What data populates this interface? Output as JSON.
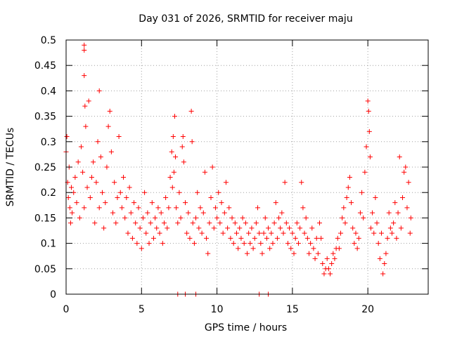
{
  "chart_data": {
    "type": "scatter",
    "title": "Day 031 of 2026, SRMTID for receiver maju",
    "xlabel": "GPS time / hours",
    "ylabel": "SRMTID / TECUs",
    "xlim": [
      0,
      24
    ],
    "ylim": [
      0,
      0.5
    ],
    "grid": true,
    "legend": "none",
    "marker": "+",
    "series_color": "#ff0000",
    "x_ticks": [
      0,
      5,
      10,
      15,
      20
    ],
    "x_tick_labels": [
      "0",
      "5",
      "10",
      "15",
      "20"
    ],
    "y_ticks": [
      0,
      0.05,
      0.1,
      0.15,
      0.2,
      0.25,
      0.3,
      0.35,
      0.4,
      0.45,
      0.5
    ],
    "y_tick_labels": [
      "0",
      "0.05",
      "0.1",
      "0.15",
      "0.2",
      "0.25",
      "0.3",
      "0.35",
      "0.4",
      "0.45",
      "0.5"
    ],
    "series": [
      {
        "name": "SRMTID",
        "points": [
          [
            0.0,
            0.28
          ],
          [
            0.05,
            0.31
          ],
          [
            0.1,
            0.22
          ],
          [
            0.15,
            0.19
          ],
          [
            0.2,
            0.25
          ],
          [
            0.25,
            0.17
          ],
          [
            0.3,
            0.14
          ],
          [
            0.35,
            0.21
          ],
          [
            0.4,
            0.16
          ],
          [
            0.5,
            0.2
          ],
          [
            0.6,
            0.23
          ],
          [
            0.7,
            0.18
          ],
          [
            0.8,
            0.26
          ],
          [
            0.9,
            0.15
          ],
          [
            1.0,
            0.29
          ],
          [
            1.1,
            0.24
          ],
          [
            1.2,
            0.17
          ],
          [
            1.25,
            0.37
          ],
          [
            1.3,
            0.33
          ],
          [
            1.4,
            0.21
          ],
          [
            1.5,
            0.38
          ],
          [
            1.6,
            0.19
          ],
          [
            1.7,
            0.23
          ],
          [
            1.8,
            0.26
          ],
          [
            1.9,
            0.14
          ],
          [
            2.0,
            0.22
          ],
          [
            2.1,
            0.3
          ],
          [
            2.2,
            0.17
          ],
          [
            2.3,
            0.27
          ],
          [
            2.4,
            0.2
          ],
          [
            2.5,
            0.13
          ],
          [
            2.6,
            0.18
          ],
          [
            2.7,
            0.25
          ],
          [
            2.8,
            0.33
          ],
          [
            2.9,
            0.36
          ],
          [
            3.0,
            0.28
          ],
          [
            3.1,
            0.16
          ],
          [
            3.2,
            0.22
          ],
          [
            3.3,
            0.14
          ],
          [
            3.4,
            0.19
          ],
          [
            3.5,
            0.31
          ],
          [
            3.6,
            0.2
          ],
          [
            3.7,
            0.17
          ],
          [
            3.8,
            0.23
          ],
          [
            3.9,
            0.15
          ],
          [
            4.0,
            0.19
          ],
          [
            4.1,
            0.12
          ],
          [
            4.2,
            0.21
          ],
          [
            4.3,
            0.16
          ],
          [
            4.4,
            0.11
          ],
          [
            4.5,
            0.18
          ],
          [
            4.6,
            0.14
          ],
          [
            4.7,
            0.1
          ],
          [
            4.8,
            0.17
          ],
          [
            4.9,
            0.13
          ],
          [
            5.0,
            0.09
          ],
          [
            5.1,
            0.15
          ],
          [
            5.2,
            0.2
          ],
          [
            5.3,
            0.12
          ],
          [
            5.4,
            0.16
          ],
          [
            5.5,
            0.1
          ],
          [
            5.6,
            0.14
          ],
          [
            5.7,
            0.18
          ],
          [
            5.8,
            0.11
          ],
          [
            5.9,
            0.15
          ],
          [
            6.0,
            0.13
          ],
          [
            6.1,
            0.17
          ],
          [
            6.2,
            0.12
          ],
          [
            6.3,
            0.16
          ],
          [
            6.4,
            0.1
          ],
          [
            6.5,
            0.14
          ],
          [
            6.6,
            0.19
          ],
          [
            6.7,
            0.13
          ],
          [
            6.8,
            0.17
          ],
          [
            6.9,
            0.23
          ],
          [
            7.0,
            0.28
          ],
          [
            7.05,
            0.21
          ],
          [
            7.1,
            0.31
          ],
          [
            7.15,
            0.24
          ],
          [
            7.2,
            0.35
          ],
          [
            7.25,
            0.27
          ],
          [
            7.3,
            0.17
          ],
          [
            7.4,
            0.14
          ],
          [
            7.5,
            0.2
          ],
          [
            7.6,
            0.15
          ],
          [
            7.7,
            0.29
          ],
          [
            7.75,
            0.31
          ],
          [
            7.8,
            0.26
          ],
          [
            7.9,
            0.18
          ],
          [
            8.0,
            0.12
          ],
          [
            8.1,
            0.16
          ],
          [
            8.2,
            0.11
          ],
          [
            8.3,
            0.36
          ],
          [
            8.35,
            0.3
          ],
          [
            8.4,
            0.14
          ],
          [
            8.5,
            0.1
          ],
          [
            8.6,
            0.15
          ],
          [
            8.7,
            0.2
          ],
          [
            8.8,
            0.13
          ],
          [
            8.9,
            0.17
          ],
          [
            9.0,
            0.12
          ],
          [
            9.1,
            0.16
          ],
          [
            9.2,
            0.24
          ],
          [
            9.3,
            0.11
          ],
          [
            9.4,
            0.08
          ],
          [
            9.5,
            0.14
          ],
          [
            9.6,
            0.19
          ],
          [
            9.7,
            0.25
          ],
          [
            9.8,
            0.13
          ],
          [
            9.9,
            0.17
          ],
          [
            10.0,
            0.15
          ],
          [
            10.1,
            0.2
          ],
          [
            10.2,
            0.14
          ],
          [
            10.3,
            0.18
          ],
          [
            10.4,
            0.12
          ],
          [
            10.5,
            0.16
          ],
          [
            10.6,
            0.22
          ],
          [
            10.7,
            0.13
          ],
          [
            10.8,
            0.17
          ],
          [
            10.9,
            0.11
          ],
          [
            11.0,
            0.15
          ],
          [
            11.1,
            0.1
          ],
          [
            11.2,
            0.14
          ],
          [
            11.3,
            0.12
          ],
          [
            11.4,
            0.09
          ],
          [
            11.5,
            0.13
          ],
          [
            11.6,
            0.11
          ],
          [
            11.7,
            0.15
          ],
          [
            11.8,
            0.1
          ],
          [
            11.9,
            0.14
          ],
          [
            12.0,
            0.08
          ],
          [
            12.1,
            0.12
          ],
          [
            12.2,
            0.1
          ],
          [
            12.3,
            0.13
          ],
          [
            12.4,
            0.09
          ],
          [
            12.5,
            0.11
          ],
          [
            12.6,
            0.14
          ],
          [
            12.7,
            0.17
          ],
          [
            12.8,
            0.12
          ],
          [
            12.9,
            0.1
          ],
          [
            13.0,
            0.08
          ],
          [
            13.1,
            0.12
          ],
          [
            13.2,
            0.15
          ],
          [
            13.3,
            0.11
          ],
          [
            13.4,
            0.13
          ],
          [
            13.5,
            0.09
          ],
          [
            13.6,
            0.12
          ],
          [
            13.7,
            0.1
          ],
          [
            13.8,
            0.14
          ],
          [
            13.9,
            0.18
          ],
          [
            14.0,
            0.11
          ],
          [
            14.1,
            0.15
          ],
          [
            14.2,
            0.13
          ],
          [
            14.3,
            0.16
          ],
          [
            14.4,
            0.12
          ],
          [
            14.5,
            0.22
          ],
          [
            14.6,
            0.14
          ],
          [
            14.7,
            0.1
          ],
          [
            14.8,
            0.13
          ],
          [
            14.9,
            0.09
          ],
          [
            15.0,
            0.12
          ],
          [
            15.1,
            0.08
          ],
          [
            15.2,
            0.11
          ],
          [
            15.3,
            0.14
          ],
          [
            15.4,
            0.1
          ],
          [
            15.5,
            0.13
          ],
          [
            15.6,
            0.22
          ],
          [
            15.7,
            0.17
          ],
          [
            15.8,
            0.12
          ],
          [
            15.9,
            0.15
          ],
          [
            16.0,
            0.11
          ],
          [
            16.1,
            0.08
          ],
          [
            16.2,
            0.1
          ],
          [
            16.3,
            0.13
          ],
          [
            16.4,
            0.09
          ],
          [
            16.5,
            0.07
          ],
          [
            16.6,
            0.11
          ],
          [
            16.7,
            0.08
          ],
          [
            16.8,
            0.14
          ],
          [
            16.9,
            0.11
          ],
          [
            17.0,
            0.06
          ],
          [
            17.1,
            0.04
          ],
          [
            17.2,
            0.05
          ],
          [
            17.3,
            0.07
          ],
          [
            17.4,
            0.05
          ],
          [
            17.5,
            0.04
          ],
          [
            17.6,
            0.06
          ],
          [
            17.7,
            0.08
          ],
          [
            17.8,
            0.07
          ],
          [
            17.9,
            0.09
          ],
          [
            18.0,
            0.11
          ],
          [
            18.1,
            0.09
          ],
          [
            18.2,
            0.12
          ],
          [
            18.3,
            0.15
          ],
          [
            18.4,
            0.17
          ],
          [
            18.5,
            0.14
          ],
          [
            18.6,
            0.19
          ],
          [
            18.7,
            0.21
          ],
          [
            18.8,
            0.23
          ],
          [
            18.9,
            0.18
          ],
          [
            19.0,
            0.13
          ],
          [
            19.1,
            0.1
          ],
          [
            19.2,
            0.12
          ],
          [
            19.3,
            0.09
          ],
          [
            19.4,
            0.11
          ],
          [
            19.5,
            0.16
          ],
          [
            19.6,
            0.2
          ],
          [
            19.7,
            0.15
          ],
          [
            19.8,
            0.24
          ],
          [
            19.9,
            0.29
          ],
          [
            20.0,
            0.38
          ],
          [
            20.05,
            0.36
          ],
          [
            20.1,
            0.32
          ],
          [
            20.15,
            0.27
          ],
          [
            20.2,
            0.13
          ],
          [
            20.3,
            0.16
          ],
          [
            20.4,
            0.12
          ],
          [
            20.5,
            0.19
          ],
          [
            20.6,
            0.14
          ],
          [
            20.7,
            0.1
          ],
          [
            20.8,
            0.07
          ],
          [
            20.9,
            0.12
          ],
          [
            21.0,
            0.04
          ],
          [
            21.1,
            0.06
          ],
          [
            21.2,
            0.08
          ],
          [
            21.3,
            0.11
          ],
          [
            21.4,
            0.16
          ],
          [
            21.5,
            0.13
          ],
          [
            21.6,
            0.12
          ],
          [
            21.7,
            0.14
          ],
          [
            21.8,
            0.18
          ],
          [
            21.9,
            0.11
          ],
          [
            22.0,
            0.16
          ],
          [
            22.1,
            0.27
          ],
          [
            22.2,
            0.13
          ],
          [
            22.3,
            0.19
          ],
          [
            22.4,
            0.24
          ],
          [
            22.5,
            0.25
          ],
          [
            22.6,
            0.17
          ],
          [
            22.7,
            0.22
          ],
          [
            22.8,
            0.12
          ],
          [
            22.85,
            0.15
          ],
          [
            1.2,
            0.43
          ],
          [
            1.2,
            0.48
          ],
          [
            1.2,
            0.49
          ],
          [
            2.2,
            0.4
          ],
          [
            7.4,
            0.0
          ],
          [
            7.9,
            0.0
          ],
          [
            8.6,
            0.0
          ],
          [
            12.8,
            0.0
          ],
          [
            13.4,
            0.0
          ]
        ]
      }
    ]
  }
}
